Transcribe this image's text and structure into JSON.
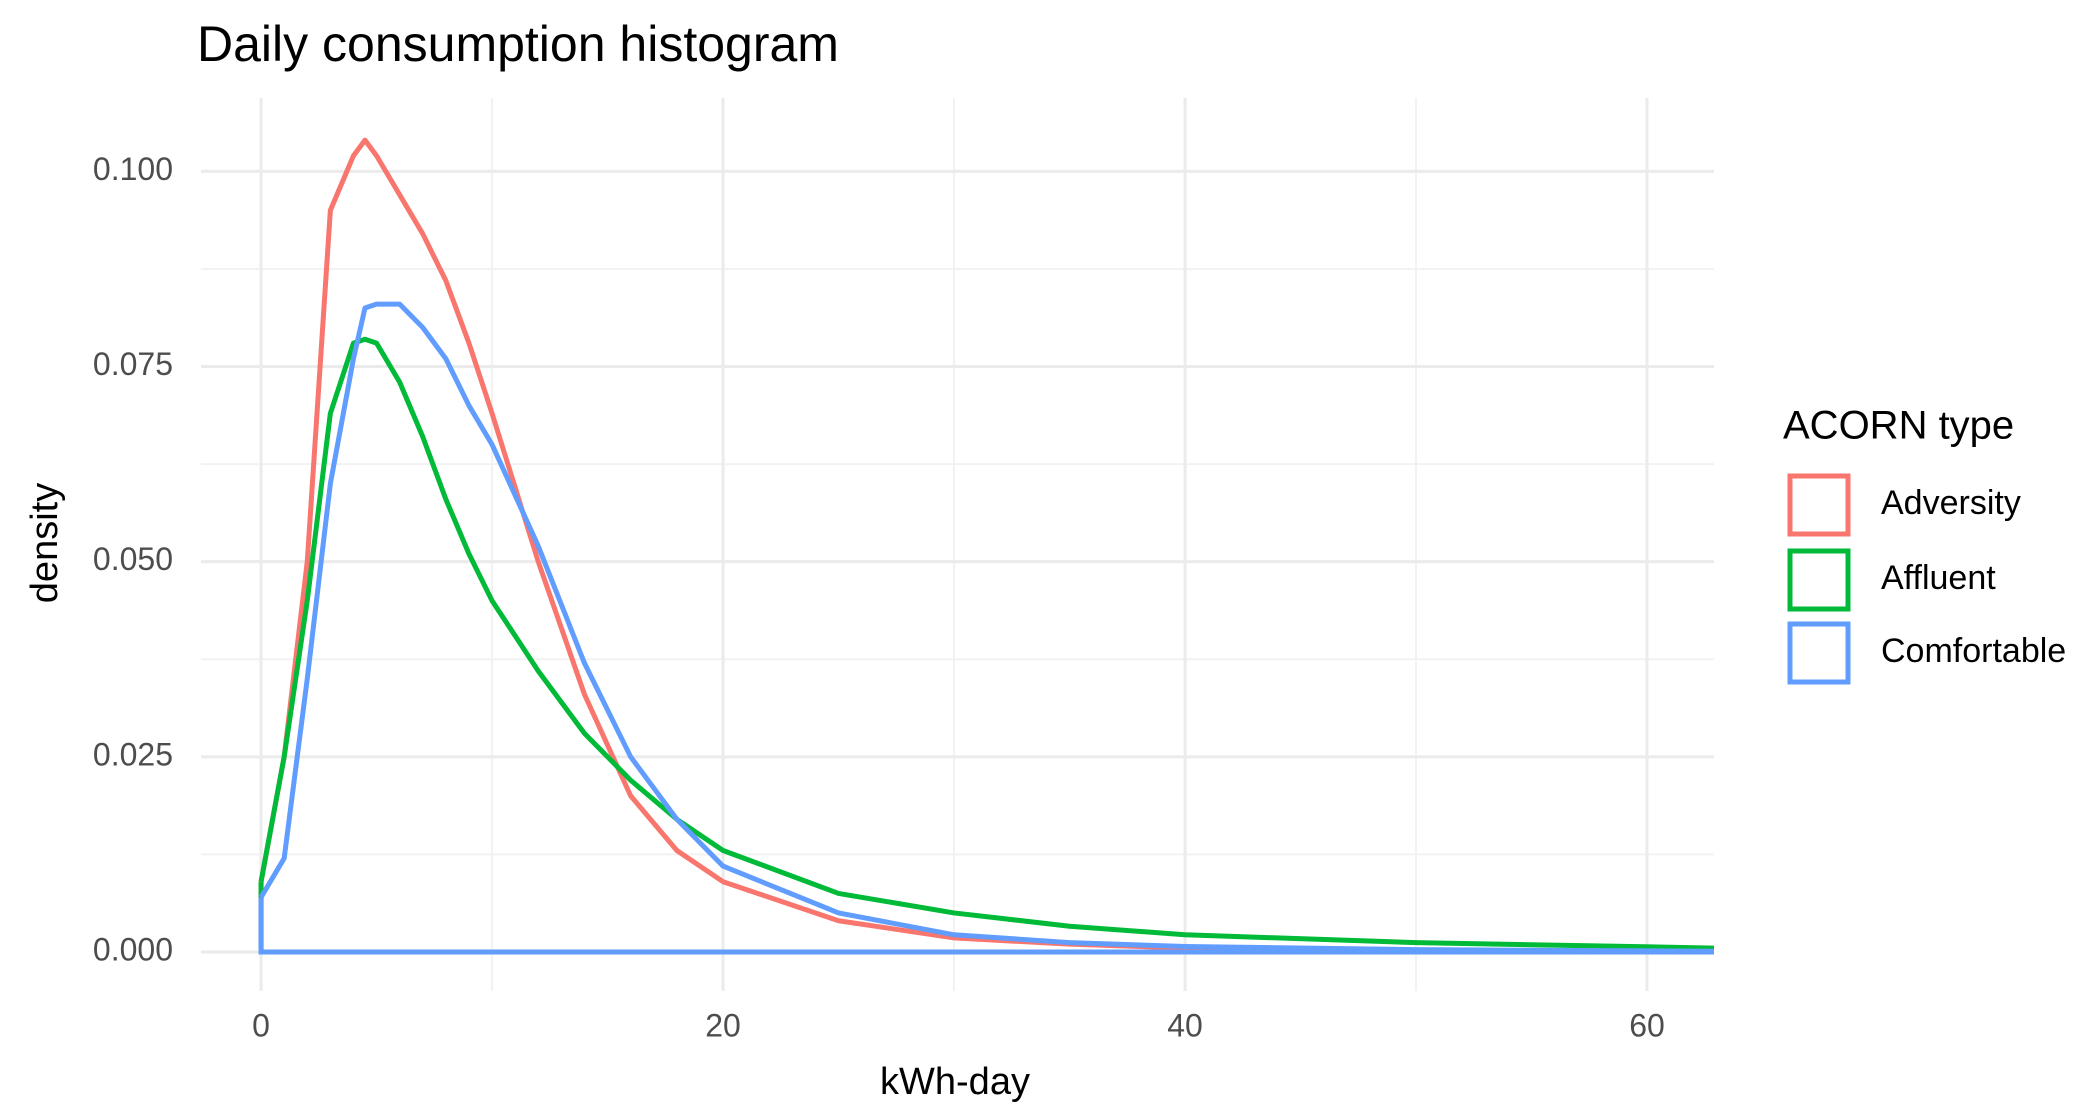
{
  "chart_data": {
    "type": "line",
    "title": "Daily consumption histogram",
    "x_label": "kWh-day",
    "y_label": "density",
    "legend_title": "ACORN type",
    "x": [
      0,
      1,
      2,
      3,
      4,
      4.5,
      5,
      6,
      7,
      8,
      9,
      10,
      12,
      14,
      16,
      18,
      20,
      25,
      30,
      35,
      40,
      50,
      62.9
    ],
    "series": [
      {
        "name": "Adversity",
        "color": "#F8766D",
        "values": [
          0.009,
          0.025,
          0.05,
          0.095,
          0.102,
          0.104,
          0.102,
          0.097,
          0.092,
          0.086,
          0.078,
          0.069,
          0.05,
          0.033,
          0.02,
          0.013,
          0.009,
          0.004,
          0.0018,
          0.001,
          0.0005,
          0.0002,
          0.0001
        ]
      },
      {
        "name": "Affluent",
        "color": "#00BA38",
        "values": [
          0.009,
          0.025,
          0.045,
          0.069,
          0.078,
          0.0785,
          0.078,
          0.073,
          0.066,
          0.058,
          0.051,
          0.045,
          0.036,
          0.028,
          0.022,
          0.017,
          0.013,
          0.0075,
          0.005,
          0.0033,
          0.0022,
          0.0012,
          0.0005
        ]
      },
      {
        "name": "Comfortable",
        "color": "#619CFF",
        "values": [
          0.007,
          0.012,
          0.035,
          0.06,
          0.076,
          0.0825,
          0.083,
          0.083,
          0.08,
          0.076,
          0.07,
          0.065,
          0.052,
          0.037,
          0.025,
          0.017,
          0.011,
          0.005,
          0.0022,
          0.0012,
          0.0007,
          0.0003,
          0.0001
        ]
      }
    ],
    "xlim": [
      -2.6,
      62.9
    ],
    "ylim": [
      -0.005,
      0.1094
    ],
    "xticks": [
      0,
      20,
      40,
      60
    ],
    "yticks": [
      {
        "value": 0,
        "label": "0.000"
      },
      {
        "value": 0.025,
        "label": "0.025"
      },
      {
        "value": 0.05,
        "label": "0.050"
      },
      {
        "value": 0.075,
        "label": "0.075"
      },
      {
        "value": 0.1,
        "label": "0.100"
      }
    ],
    "x_minor_grid": [
      10,
      30,
      50
    ],
    "y_minor_grid": [
      0.0125,
      0.0375,
      0.0625,
      0.0875
    ],
    "grid": true,
    "legend": "right"
  }
}
